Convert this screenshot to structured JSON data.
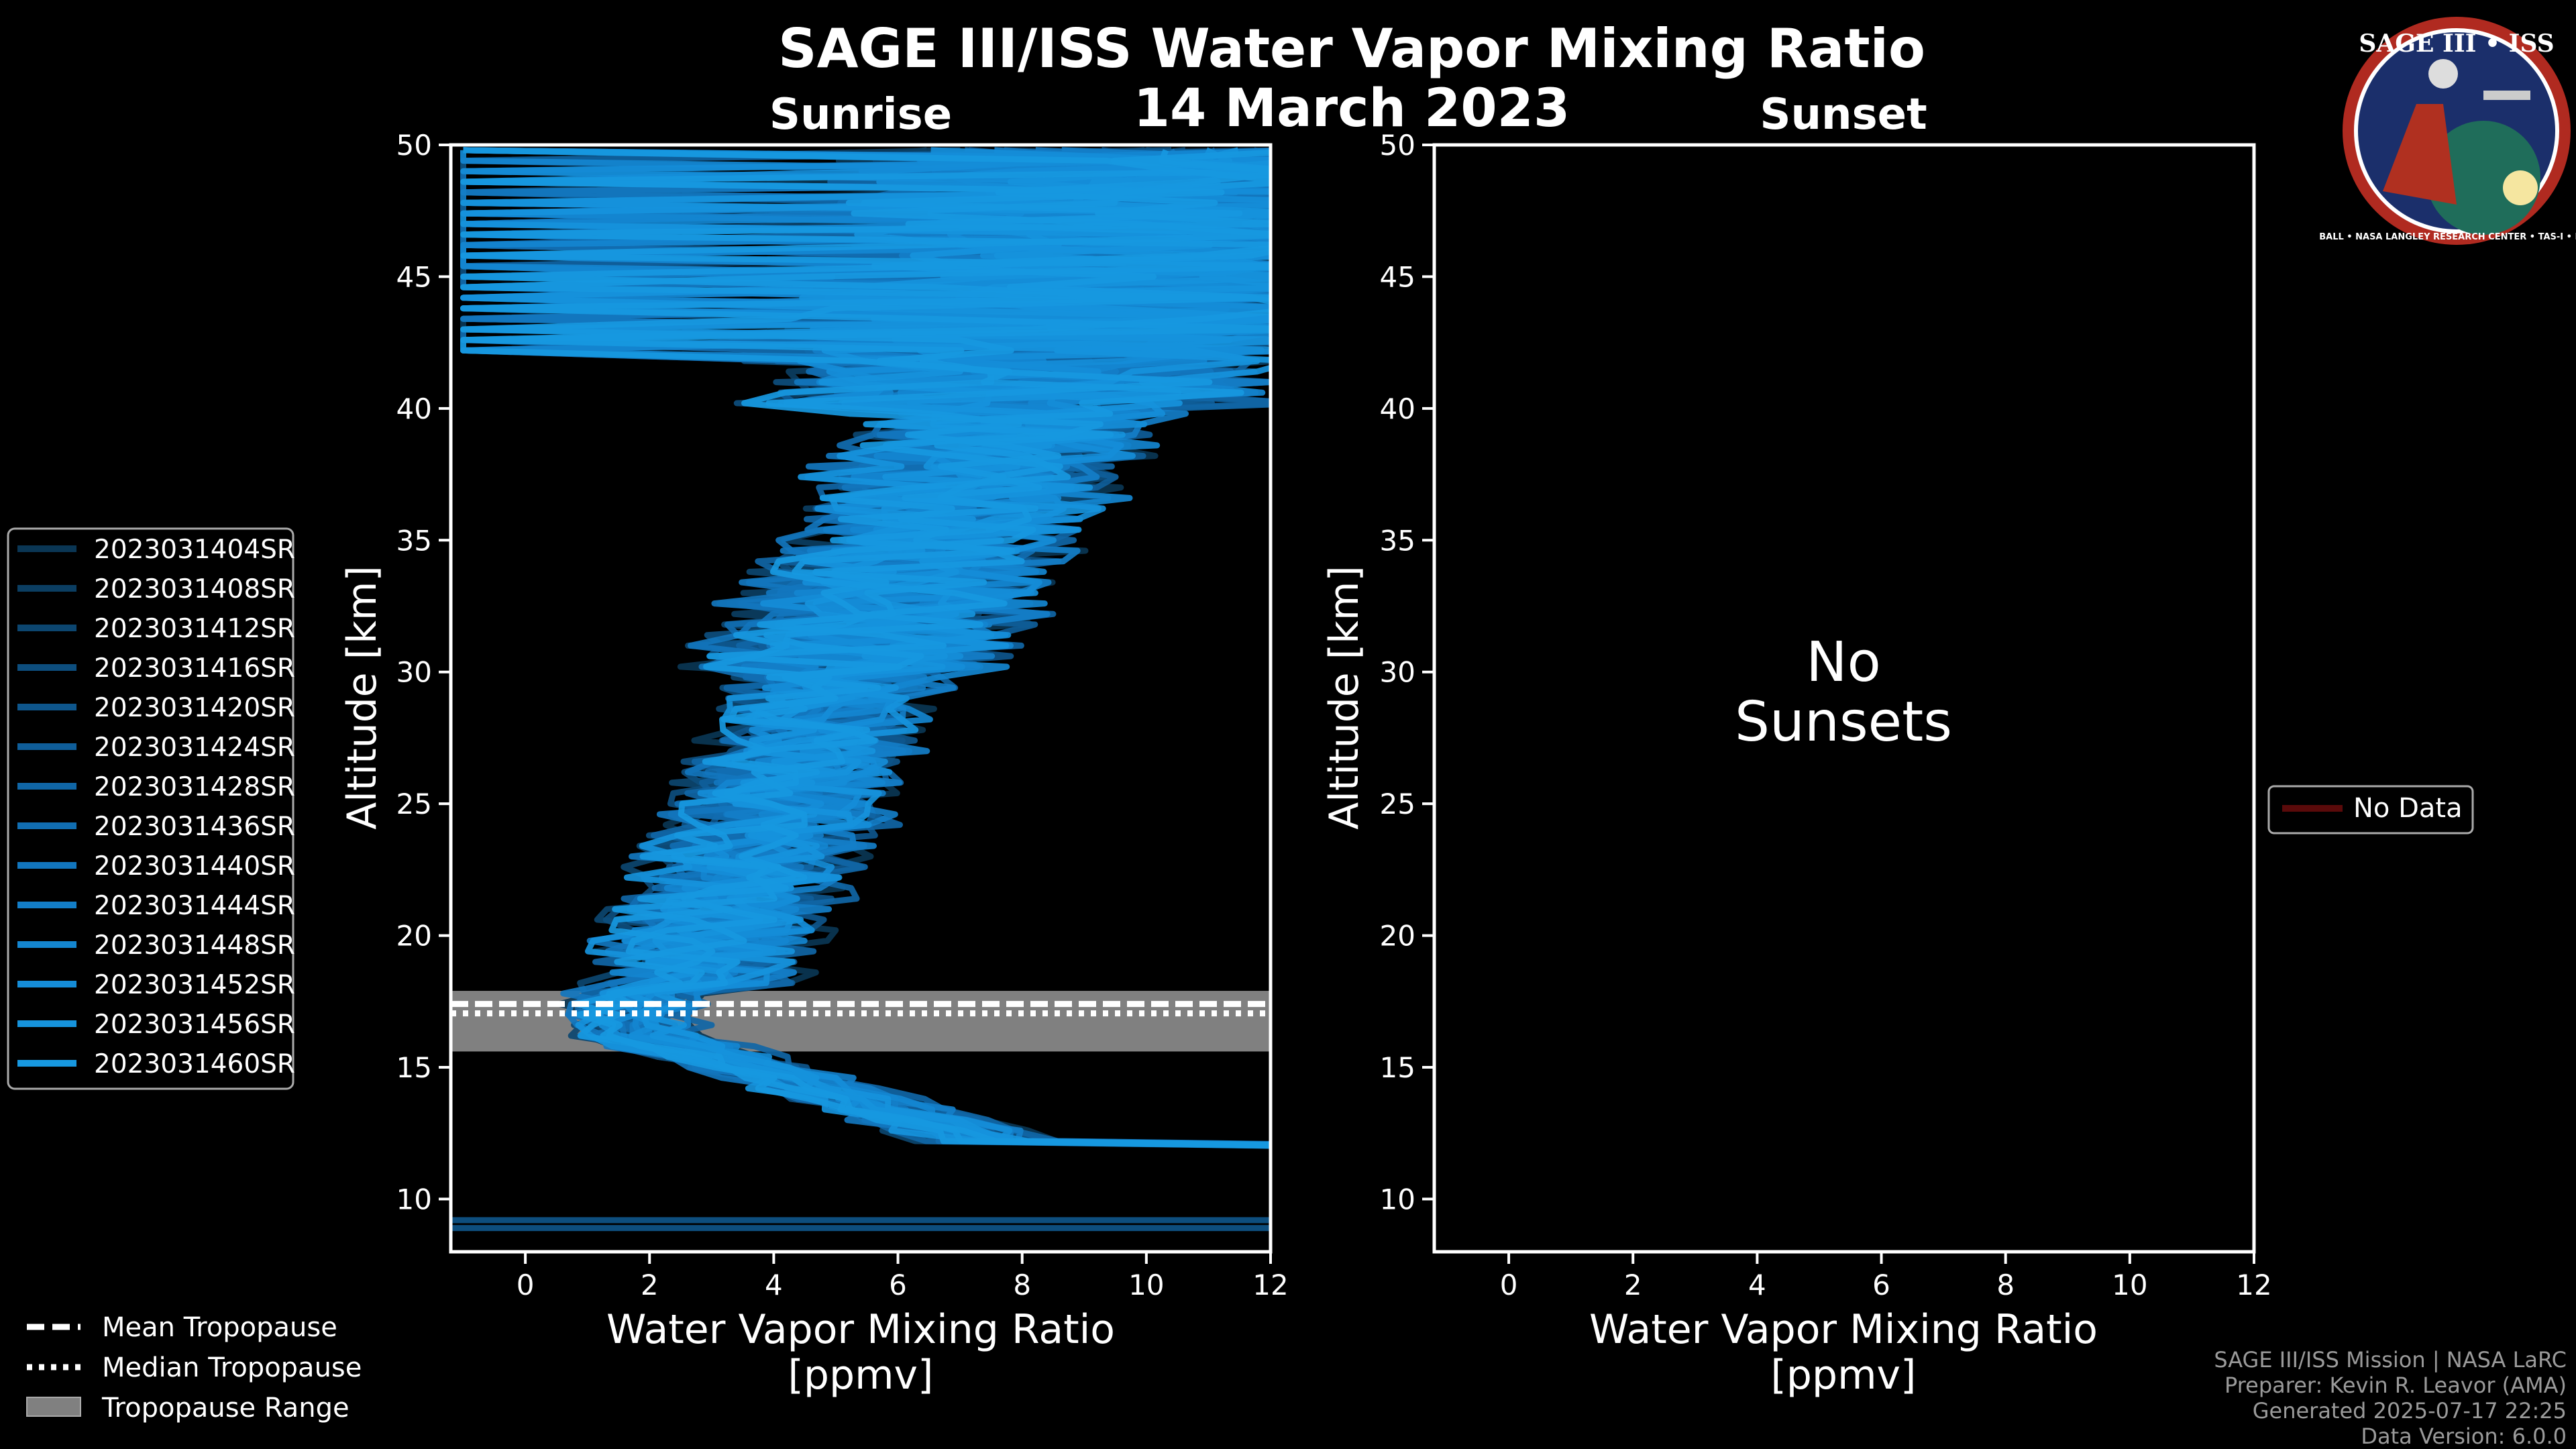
{
  "title": "SAGE III/ISS Water Vapor Mixing Ratio",
  "date": "14 March 2023",
  "chart_data": [
    {
      "type": "line",
      "panel_title": "Sunrise",
      "xlabel_line1": "Water Vapor Mixing Ratio",
      "xlabel_line2": "[ppmv]",
      "ylabel": "Altitude [km]",
      "xlim": [
        -1.2,
        12
      ],
      "ylim": [
        8,
        50
      ],
      "xticks": [
        0,
        2,
        4,
        6,
        8,
        10,
        12
      ],
      "yticks": [
        10,
        15,
        20,
        25,
        30,
        35,
        40,
        45,
        50
      ],
      "grid": false,
      "tropopause": {
        "mean_km": 17.2,
        "median_km": 17.2,
        "range_km": [
          15.6,
          17.9
        ]
      },
      "series": [
        {
          "name": "2023031404SR",
          "color": "#0a3654"
        },
        {
          "name": "2023031408SR",
          "color": "#0b3e62"
        },
        {
          "name": "2023031412SR",
          "color": "#0c4670"
        },
        {
          "name": "2023031416SR",
          "color": "#0d4e7e"
        },
        {
          "name": "2023031420SR",
          "color": "#0e568c"
        },
        {
          "name": "2023031424SR",
          "color": "#0f5e9a"
        },
        {
          "name": "2023031428SR",
          "color": "#1066a6"
        },
        {
          "name": "2023031436SR",
          "color": "#116eb2"
        },
        {
          "name": "2023031440SR",
          "color": "#1276be"
        },
        {
          "name": "2023031444SR",
          "color": "#137ec8"
        },
        {
          "name": "2023031448SR",
          "color": "#1486d0"
        },
        {
          "name": "2023031452SR",
          "color": "#158dd8"
        },
        {
          "name": "2023031456SR",
          "color": "#1693dc"
        },
        {
          "name": "2023031460SR",
          "color": "#1798e0"
        }
      ]
    },
    {
      "type": "line",
      "panel_title": "Sunset",
      "xlabel_line1": "Water Vapor Mixing Ratio",
      "xlabel_line2": "[ppmv]",
      "ylabel": "Altitude [km]",
      "xlim": [
        -1.2,
        12
      ],
      "ylim": [
        8,
        50
      ],
      "xticks": [
        0,
        2,
        4,
        6,
        8,
        10,
        12
      ],
      "yticks": [
        10,
        15,
        20,
        25,
        30,
        35,
        40,
        45,
        50
      ],
      "grid": false,
      "annotation_line1": "No",
      "annotation_line2": "Sunsets",
      "series": [
        {
          "name": "No Data",
          "color": "#5a0a0a"
        }
      ]
    }
  ],
  "tropo_legend": [
    {
      "label": "Mean Tropopause",
      "style": "dashed"
    },
    {
      "label": "Median Tropopause",
      "style": "dotted"
    },
    {
      "label": "Tropopause Range",
      "style": "fill"
    }
  ],
  "credits": {
    "line1": "SAGE III/ISS Mission | NASA LaRC",
    "line2": "Preparer: Kevin R. Leavor (AMA)",
    "line3": "Generated 2025-07-17 22:25",
    "line4": "Data Version: 6.0.0"
  },
  "badge": {
    "title": "SAGE III • ISS",
    "ring_text": "BALL • NASA LANGLEY RESEARCH CENTER • TAS-I • ESA"
  }
}
